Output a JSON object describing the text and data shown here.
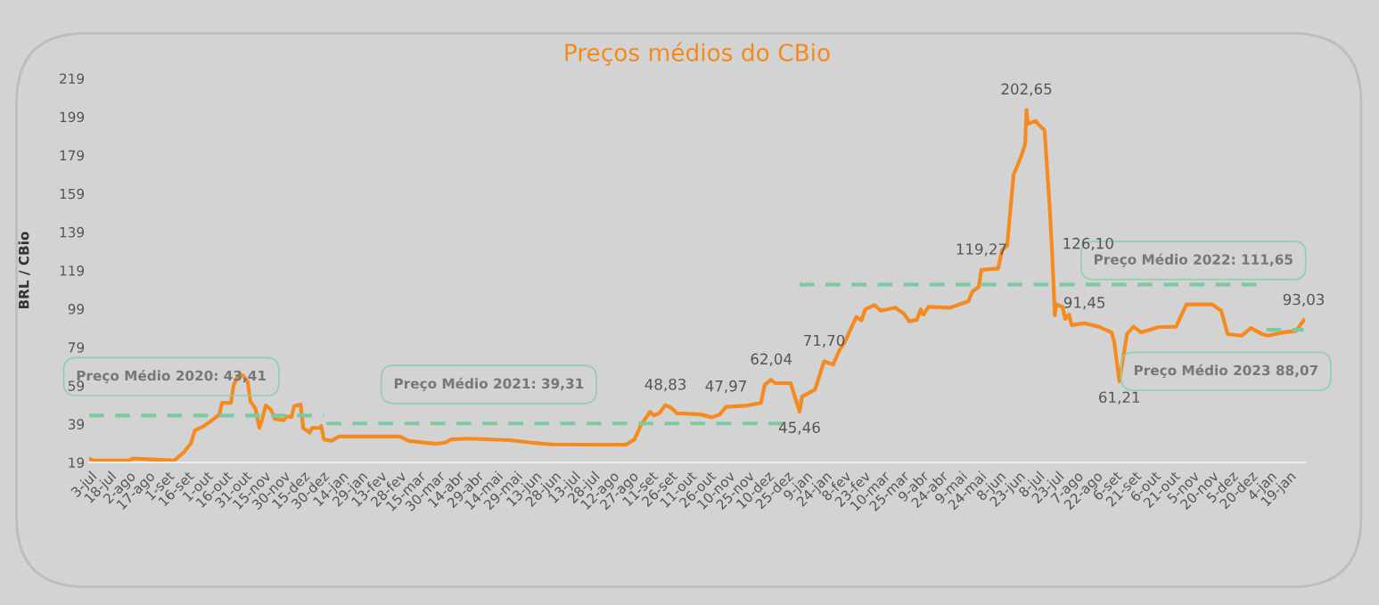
{
  "chart_data": {
    "type": "line",
    "title": "Preços médios do CBio",
    "ylabel": "BRL / CBio",
    "xlim": [
      "2020-07-02",
      "2023-01-31"
    ],
    "ylim": [
      19,
      219
    ],
    "yticks": [
      19,
      39,
      59,
      79,
      99,
      119,
      139,
      159,
      179,
      199,
      219
    ],
    "xticks": [
      {
        "value": "2020-07-03",
        "label": "3-jul"
      },
      {
        "value": "2020-07-18",
        "label": "18-jul"
      },
      {
        "value": "2020-08-02",
        "label": "2-ago"
      },
      {
        "value": "2020-08-17",
        "label": "17-ago"
      },
      {
        "value": "2020-09-01",
        "label": "1-set"
      },
      {
        "value": "2020-09-16",
        "label": "16-set"
      },
      {
        "value": "2020-10-01",
        "label": "1-out"
      },
      {
        "value": "2020-10-16",
        "label": "16-out"
      },
      {
        "value": "2020-10-31",
        "label": "31-out"
      },
      {
        "value": "2020-11-15",
        "label": "15-nov"
      },
      {
        "value": "2020-11-30",
        "label": "30-nov"
      },
      {
        "value": "2020-12-15",
        "label": "15-dez"
      },
      {
        "value": "2020-12-30",
        "label": "30-dez"
      },
      {
        "value": "2021-01-14",
        "label": "14-jan"
      },
      {
        "value": "2021-01-29",
        "label": "29-jan"
      },
      {
        "value": "2021-02-13",
        "label": "13-fev"
      },
      {
        "value": "2021-02-28",
        "label": "28-fev"
      },
      {
        "value": "2021-03-15",
        "label": "15-mar"
      },
      {
        "value": "2021-03-30",
        "label": "30-mar"
      },
      {
        "value": "2021-04-14",
        "label": "14-abr"
      },
      {
        "value": "2021-04-29",
        "label": "29-abr"
      },
      {
        "value": "2021-05-14",
        "label": "14-mai"
      },
      {
        "value": "2021-05-29",
        "label": "29-mai"
      },
      {
        "value": "2021-06-13",
        "label": "13-jun"
      },
      {
        "value": "2021-06-28",
        "label": "28-jun"
      },
      {
        "value": "2021-07-13",
        "label": "13-jul"
      },
      {
        "value": "2021-07-28",
        "label": "28-jul"
      },
      {
        "value": "2021-08-12",
        "label": "12-ago"
      },
      {
        "value": "2021-08-27",
        "label": "27-ago"
      },
      {
        "value": "2021-09-11",
        "label": "11-set"
      },
      {
        "value": "2021-09-26",
        "label": "26-set"
      },
      {
        "value": "2021-10-11",
        "label": "11-out"
      },
      {
        "value": "2021-10-26",
        "label": "26-out"
      },
      {
        "value": "2021-11-10",
        "label": "10-nov"
      },
      {
        "value": "2021-11-25",
        "label": "25-nov"
      },
      {
        "value": "2021-12-10",
        "label": "10-dez"
      },
      {
        "value": "2021-12-25",
        "label": "25-dez"
      },
      {
        "value": "2022-01-09",
        "label": "9-jan"
      },
      {
        "value": "2022-01-24",
        "label": "24-jan"
      },
      {
        "value": "2022-02-08",
        "label": "8-fev"
      },
      {
        "value": "2022-02-23",
        "label": "23-fev"
      },
      {
        "value": "2022-03-10",
        "label": "10-mar"
      },
      {
        "value": "2022-03-25",
        "label": "25-mar"
      },
      {
        "value": "2022-04-09",
        "label": "9-abr"
      },
      {
        "value": "2022-04-24",
        "label": "24-abr"
      },
      {
        "value": "2022-05-09",
        "label": "9-mai"
      },
      {
        "value": "2022-05-24",
        "label": "24-mai"
      },
      {
        "value": "2022-06-08",
        "label": "8-jun"
      },
      {
        "value": "2022-06-23",
        "label": "23-jun"
      },
      {
        "value": "2022-07-08",
        "label": "8-jul"
      },
      {
        "value": "2022-07-23",
        "label": "23-jul"
      },
      {
        "value": "2022-08-07",
        "label": "7-ago"
      },
      {
        "value": "2022-08-22",
        "label": "22-ago"
      },
      {
        "value": "2022-09-06",
        "label": "6-set"
      },
      {
        "value": "2022-09-21",
        "label": "21-set"
      },
      {
        "value": "2022-10-06",
        "label": "6-out"
      },
      {
        "value": "2022-10-21",
        "label": "21-out"
      },
      {
        "value": "2022-11-05",
        "label": "5-nov"
      },
      {
        "value": "2022-11-20",
        "label": "20-nov"
      },
      {
        "value": "2022-12-05",
        "label": "5-dez"
      },
      {
        "value": "2022-12-20",
        "label": "20-dez"
      },
      {
        "value": "2023-01-04",
        "label": "4-jan"
      },
      {
        "value": "2023-01-19",
        "label": "19-jan"
      }
    ],
    "grid": false,
    "legend": false,
    "series": [
      {
        "color": "#f58a1f",
        "line_style": "solid",
        "x": [
          "2020-07-02",
          "2020-07-05",
          "2020-08-02",
          "2020-08-05",
          "2020-09-06",
          "2020-09-13",
          "2020-09-19",
          "2020-09-22",
          "2020-09-29",
          "2020-10-04",
          "2020-10-11",
          "2020-10-13",
          "2020-10-20",
          "2020-10-22",
          "2020-10-25",
          "2020-10-29",
          "2020-11-02",
          "2020-11-04",
          "2020-11-08",
          "2020-11-11",
          "2020-11-13",
          "2020-11-16",
          "2020-11-20",
          "2020-11-23",
          "2020-11-30",
          "2020-12-02",
          "2020-12-06",
          "2020-12-08",
          "2020-12-13",
          "2020-12-15",
          "2020-12-20",
          "2020-12-22",
          "2020-12-28",
          "2020-12-29",
          "2020-12-31",
          "2021-01-06",
          "2021-01-12",
          "2021-02-28",
          "2021-03-07",
          "2021-03-28",
          "2021-04-04",
          "2021-04-09",
          "2021-04-22",
          "2021-05-24",
          "2021-06-10",
          "2021-06-26",
          "2021-08-22",
          "2021-08-29",
          "2021-09-03",
          "2021-09-10",
          "2021-09-13",
          "2021-09-17",
          "2021-09-22",
          "2021-09-26",
          "2021-10-01",
          "2021-10-19",
          "2021-10-28",
          "2021-11-03",
          "2021-11-08",
          "2021-11-23",
          "2021-12-05",
          "2021-12-08",
          "2021-12-13",
          "2021-12-16",
          "2021-12-28",
          "2022-01-04",
          "2022-01-06",
          "2022-01-16",
          "2022-01-23",
          "2022-01-30",
          "2022-02-04",
          "2022-02-08",
          "2022-02-17",
          "2022-02-21",
          "2022-02-24",
          "2022-03-03",
          "2022-03-08",
          "2022-03-19",
          "2022-03-26",
          "2022-03-30",
          "2022-04-05",
          "2022-04-08",
          "2022-04-10",
          "2022-04-14",
          "2022-05-01",
          "2022-05-15",
          "2022-05-18",
          "2022-05-23",
          "2022-05-25",
          "2022-05-29",
          "2022-06-07",
          "2022-06-10",
          "2022-06-14",
          "2022-06-19",
          "2022-06-22",
          "2022-06-25",
          "2022-06-28",
          "2022-06-29",
          "2022-06-30",
          "2022-07-06",
          "2022-07-09",
          "2022-07-13",
          "2022-07-17",
          "2022-07-19",
          "2022-07-21",
          "2022-07-22",
          "2022-07-27",
          "2022-07-29",
          "2022-08-01",
          "2022-08-03",
          "2022-08-13",
          "2022-08-24",
          "2022-09-03",
          "2022-09-05",
          "2022-09-09",
          "2022-09-15",
          "2022-09-20",
          "2022-09-26",
          "2022-10-09",
          "2022-10-23",
          "2022-10-31",
          "2022-11-20",
          "2022-11-27",
          "2022-12-02",
          "2022-12-13",
          "2022-12-20",
          "2022-12-29",
          "2023-01-02",
          "2023-01-14",
          "2023-01-24",
          "2023-01-30"
        ],
        "values": [
          21,
          20,
          20,
          21,
          20,
          24,
          29,
          35.7,
          38,
          40.3,
          44,
          50,
          50,
          59,
          63.5,
          64.5,
          61,
          51,
          47,
          37,
          41,
          48.7,
          46.5,
          41.7,
          41,
          43,
          42.6,
          48.3,
          49.2,
          37,
          34.5,
          37,
          37,
          38,
          31,
          30.3,
          32.5,
          32.5,
          30.2,
          28.7,
          29.3,
          31,
          31.4,
          30.6,
          29.3,
          28.4,
          28.2,
          31,
          38.5,
          45.4,
          43.5,
          44.6,
          48.83,
          47.6,
          44.6,
          44,
          42.5,
          44,
          47.97,
          48.5,
          50,
          59.5,
          62.04,
          60.3,
          60.3,
          45.46,
          53.3,
          57,
          71.7,
          70,
          77.5,
          81.6,
          94.8,
          93,
          98.8,
          101,
          98,
          99.6,
          96.5,
          92.5,
          93.3,
          98.8,
          96,
          100,
          99.6,
          103,
          108,
          110.5,
          119.27,
          119.5,
          120,
          129.4,
          132,
          169,
          173.6,
          178.8,
          185,
          202.65,
          195.3,
          196.9,
          194.5,
          192,
          152,
          126.1,
          95.6,
          101.3,
          100,
          93.7,
          96,
          90.5,
          91.45,
          89.7,
          86.7,
          82,
          61.21,
          86,
          89.7,
          86.7,
          89.4,
          89.7,
          101.3,
          101.3,
          98,
          85.8,
          85,
          89,
          85.8,
          85,
          86.7,
          87.5,
          93.03
        ]
      },
      {
        "color": "#7dcaa0",
        "line_style": "dashed",
        "x": [
          "2020-07-02",
          "2020-12-31"
        ],
        "values": [
          43.41,
          43.41
        ]
      },
      {
        "color": "#7dcaa0",
        "line_style": "dashed",
        "x": [
          "2021-01-02",
          "2021-12-28"
        ],
        "values": [
          39.31,
          39.31
        ]
      },
      {
        "color": "#7dcaa0",
        "line_style": "dashed",
        "x": [
          "2022-01-04",
          "2022-12-29"
        ],
        "values": [
          111.65,
          111.65
        ]
      },
      {
        "color": "#7dcaa0",
        "line_style": "dashed",
        "x": [
          "2023-01-01",
          "2023-01-30"
        ],
        "values": [
          88.07,
          88.07
        ]
      }
    ],
    "annotations": [
      "Preço Médio 2020: 43,41",
      "Preço Médio 2021: 39,31",
      "Preço Médio 2022: 111,65",
      "Preço Médio 2023 88,07",
      {
        "text": "48,83",
        "x": "2021-09-22",
        "y": 48.83
      },
      {
        "text": "47,97",
        "x": "2021-11-08",
        "y": 47.97
      },
      {
        "text": "62,04",
        "x": "2021-12-13",
        "y": 62.04
      },
      {
        "text": "45,46",
        "x": "2022-01-04",
        "y": 45.46
      },
      {
        "text": "71,70",
        "x": "2022-01-23",
        "y": 71.7
      },
      {
        "text": "119,27",
        "x": "2022-05-25",
        "y": 119.27
      },
      {
        "text": "202,65",
        "x": "2022-06-29",
        "y": 202.65
      },
      {
        "text": "126,10",
        "x": "2022-07-19",
        "y": 126.1
      },
      {
        "text": "91,45",
        "x": "2022-08-13",
        "y": 91.45
      },
      {
        "text": "61,21",
        "x": "2022-09-09",
        "y": 61.21
      },
      {
        "text": "93,03",
        "x": "2023-01-30",
        "y": 93.03
      }
    ]
  }
}
